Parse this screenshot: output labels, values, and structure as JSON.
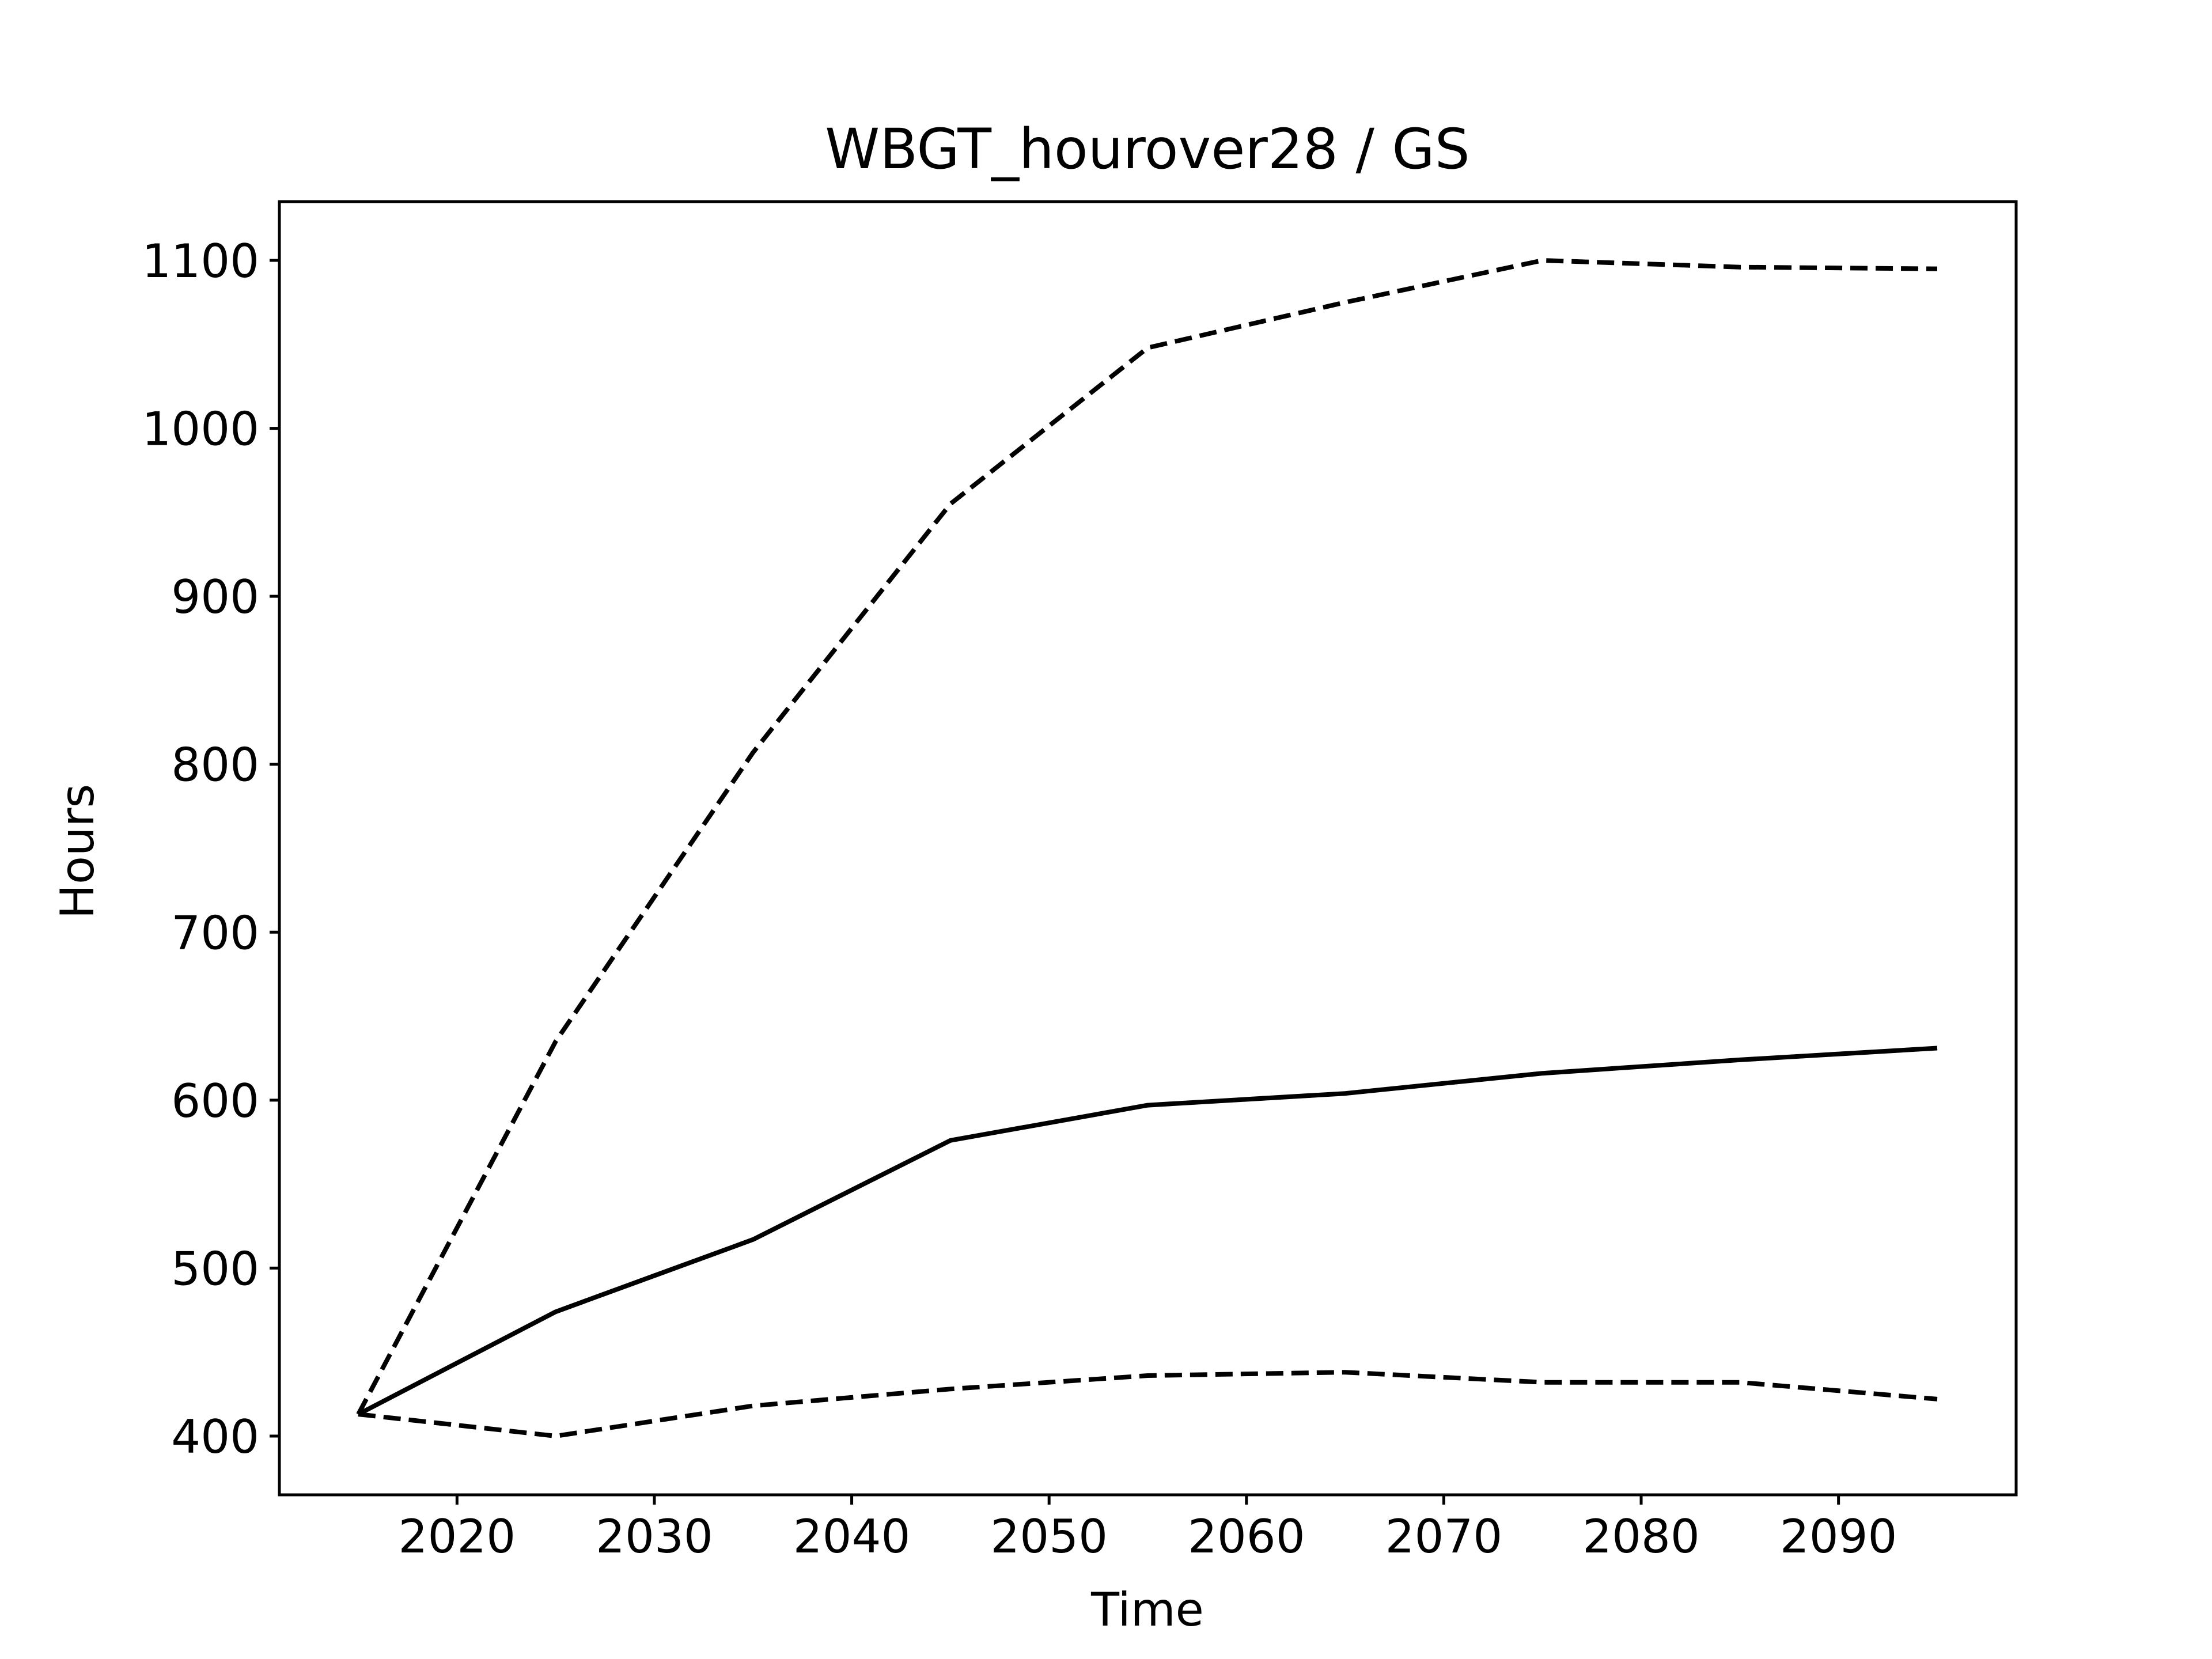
{
  "chart_data": {
    "type": "line",
    "title": "WBGT_hourover28 / GS",
    "xlabel": "Time",
    "ylabel": "Hours",
    "x": [
      2015,
      2025,
      2035,
      2045,
      2055,
      2065,
      2075,
      2085,
      2095
    ],
    "xlim": [
      2011,
      2099
    ],
    "ylim": [
      365,
      1135
    ],
    "xticks": [
      2020,
      2030,
      2040,
      2050,
      2060,
      2070,
      2080,
      2090
    ],
    "yticks": [
      400,
      500,
      600,
      700,
      800,
      900,
      1000,
      1100
    ],
    "grid": false,
    "series": [
      {
        "style": "solid",
        "color": "#000000",
        "values": [
          413,
          474,
          517,
          576,
          597,
          604,
          616,
          624,
          631
        ]
      },
      {
        "style": "dashed",
        "color": "#000000",
        "values": [
          413,
          635,
          807,
          955,
          1048,
          1075,
          1100,
          1096,
          1095
        ]
      },
      {
        "style": "dashed",
        "color": "#000000",
        "values": [
          413,
          400,
          418,
          428,
          436,
          438,
          432,
          432,
          422
        ]
      }
    ]
  }
}
